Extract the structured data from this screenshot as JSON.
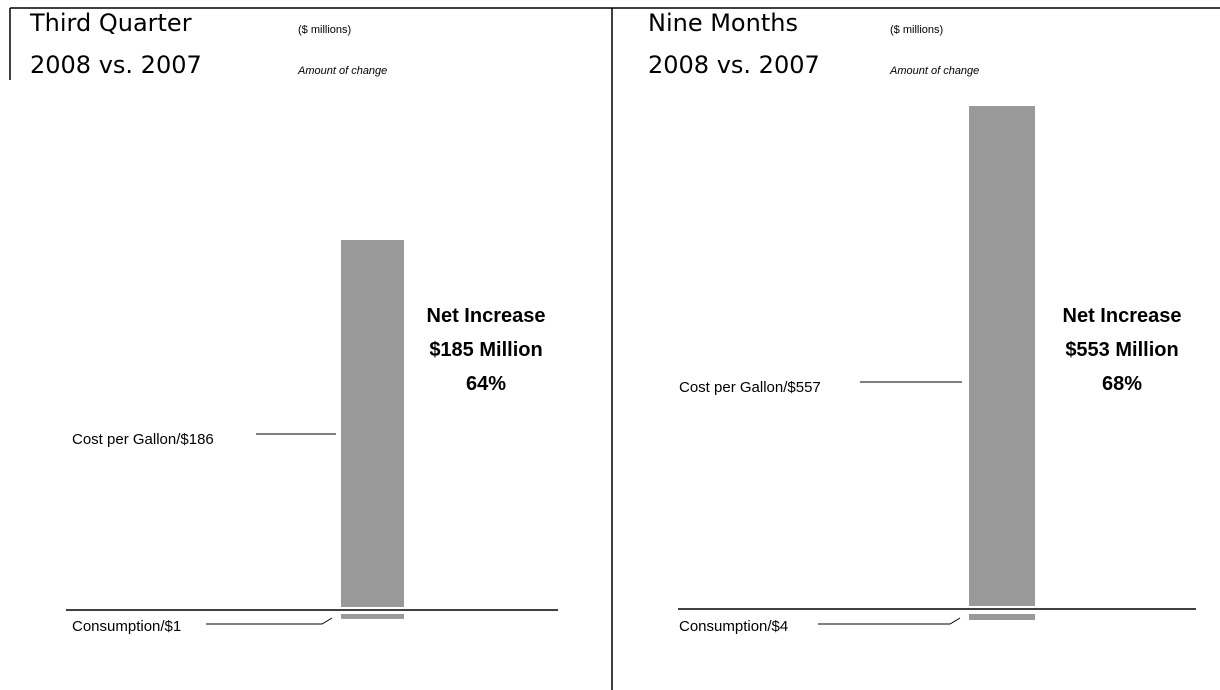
{
  "chart_data": [
    {
      "type": "bar",
      "title": "Third Quarter",
      "subtitle": "2008 vs. 2007",
      "units_label": "($ millions)",
      "caption": "Amount of change",
      "series": [
        {
          "name": "Cost per Gallon",
          "label": "Cost per Gallon/$186",
          "value": 186,
          "color": "#999999"
        },
        {
          "name": "Consumption",
          "label": "Consumption/$1",
          "value": -1,
          "color": "#999999"
        }
      ],
      "net": {
        "line1": "Net Increase",
        "line2": "$185 Million",
        "line3": "64%",
        "value": 185,
        "percent": 64
      }
    },
    {
      "type": "bar",
      "title": "Nine Months",
      "subtitle": "2008 vs. 2007",
      "units_label": "($ millions)",
      "caption": "Amount of change",
      "series": [
        {
          "name": "Cost per Gallon",
          "label": "Cost per Gallon/$557",
          "value": 557,
          "color": "#999999"
        },
        {
          "name": "Consumption",
          "label": "Consumption/$4",
          "value": -4,
          "color": "#999999"
        }
      ],
      "net": {
        "line1": "Net Increase",
        "line2": "$553 Million",
        "line3": "68%",
        "value": 553,
        "percent": 68
      }
    }
  ]
}
